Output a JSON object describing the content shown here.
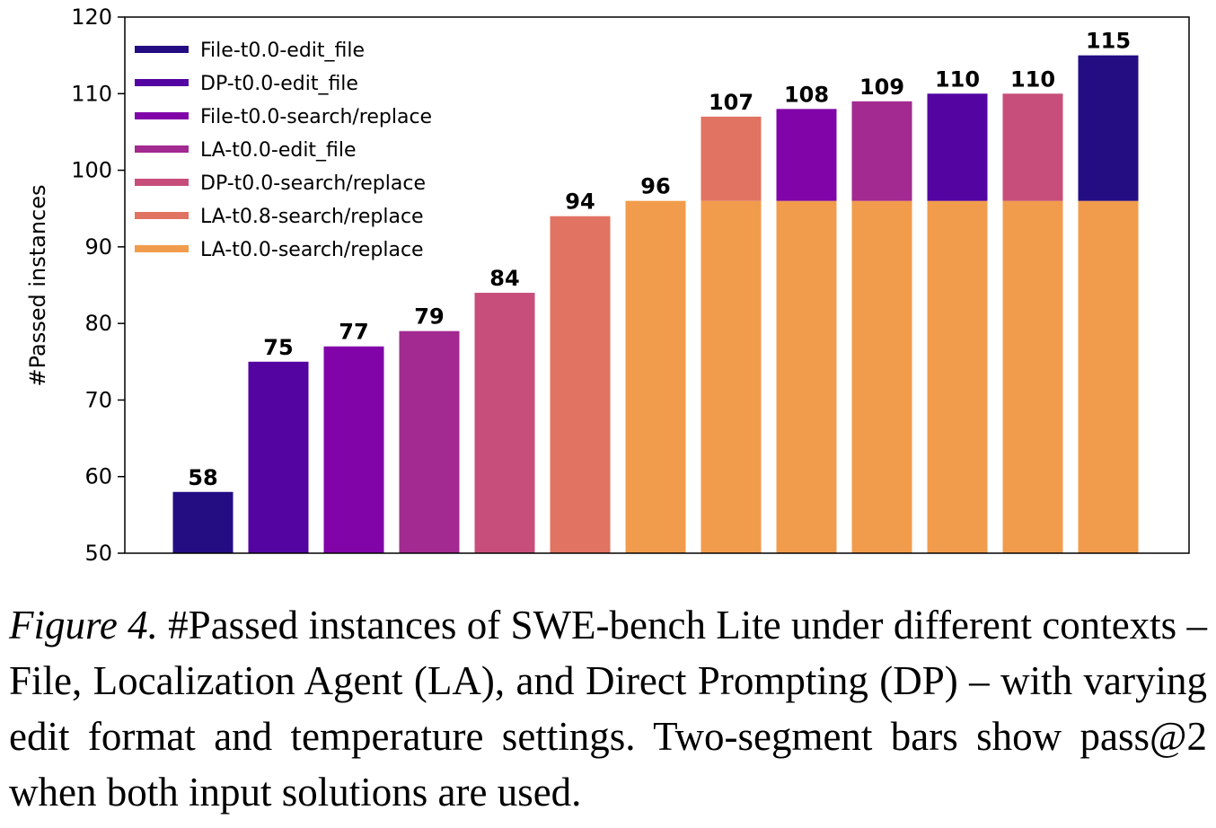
{
  "chart_data": {
    "type": "bar",
    "stacked": true,
    "title": "",
    "xlabel": "",
    "ylabel": "#Passed instances",
    "ylim": [
      50,
      120
    ],
    "yticks": [
      50,
      60,
      70,
      80,
      90,
      100,
      110,
      120
    ],
    "grid": false,
    "legend_position": "top-left",
    "series": [
      {
        "name": "File-t0.0-edit_file",
        "color": "#240d83"
      },
      {
        "name": "DP-t0.0-edit_file",
        "color": "#5304a1"
      },
      {
        "name": "File-t0.0-search/replace",
        "color": "#8004a8"
      },
      {
        "name": "LA-t0.0-edit_file",
        "color": "#a22a90"
      },
      {
        "name": "DP-t0.0-search/replace",
        "color": "#c74e7a"
      },
      {
        "name": "LA-t0.8-search/replace",
        "color": "#e07361"
      },
      {
        "name": "LA-t0.0-search/replace",
        "color": "#f19c4c"
      }
    ],
    "bars": [
      {
        "total": 58,
        "label": "58",
        "segments": [
          {
            "series": 0,
            "from": 50,
            "to": 58
          }
        ]
      },
      {
        "total": 75,
        "label": "75",
        "segments": [
          {
            "series": 1,
            "from": 50,
            "to": 75
          }
        ]
      },
      {
        "total": 77,
        "label": "77",
        "segments": [
          {
            "series": 2,
            "from": 50,
            "to": 77
          }
        ]
      },
      {
        "total": 79,
        "label": "79",
        "segments": [
          {
            "series": 3,
            "from": 50,
            "to": 79
          }
        ]
      },
      {
        "total": 84,
        "label": "84",
        "segments": [
          {
            "series": 4,
            "from": 50,
            "to": 84
          }
        ]
      },
      {
        "total": 94,
        "label": "94",
        "segments": [
          {
            "series": 5,
            "from": 50,
            "to": 94
          }
        ]
      },
      {
        "total": 96,
        "label": "96",
        "segments": [
          {
            "series": 6,
            "from": 50,
            "to": 96
          }
        ]
      },
      {
        "total": 107,
        "label": "107",
        "segments": [
          {
            "series": 6,
            "from": 50,
            "to": 96
          },
          {
            "series": 5,
            "from": 96,
            "to": 107
          }
        ]
      },
      {
        "total": 108,
        "label": "108",
        "segments": [
          {
            "series": 6,
            "from": 50,
            "to": 96
          },
          {
            "series": 2,
            "from": 96,
            "to": 108
          }
        ]
      },
      {
        "total": 109,
        "label": "109",
        "segments": [
          {
            "series": 6,
            "from": 50,
            "to": 96
          },
          {
            "series": 3,
            "from": 96,
            "to": 109
          }
        ]
      },
      {
        "total": 110,
        "label": "110",
        "segments": [
          {
            "series": 6,
            "from": 50,
            "to": 96
          },
          {
            "series": 1,
            "from": 96,
            "to": 110
          }
        ]
      },
      {
        "total": 110,
        "label": "110",
        "segments": [
          {
            "series": 6,
            "from": 50,
            "to": 96
          },
          {
            "series": 4,
            "from": 96,
            "to": 110
          }
        ]
      },
      {
        "total": 115,
        "label": "115",
        "segments": [
          {
            "series": 6,
            "from": 50,
            "to": 96
          },
          {
            "series": 0,
            "from": 96,
            "to": 115
          }
        ]
      }
    ]
  },
  "caption": {
    "lead": "Figure 4.",
    "text": " #Passed instances of SWE-bench Lite under different contexts – File, Localization Agent (LA), and Direct Prompting (DP) – with varying edit format and temperature settings. Two-segment bars show pass@2 when both input solutions are used."
  }
}
